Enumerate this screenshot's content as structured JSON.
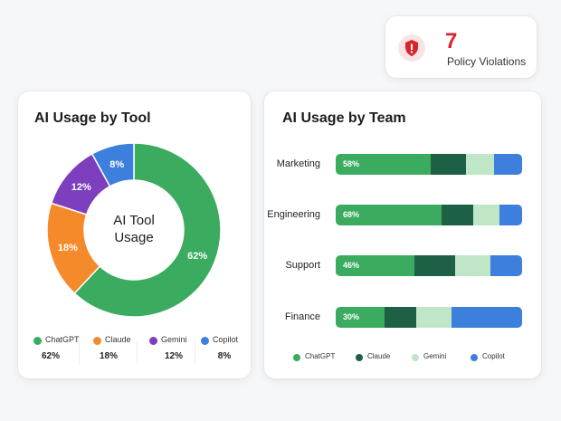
{
  "violations": {
    "count": "7",
    "label": "Policy Violations",
    "color": "#d9242b",
    "icon": "shield-alert-icon"
  },
  "tool_card": {
    "title": "AI Usage by Tool",
    "center_label": [
      "AI Tool",
      "Usage"
    ],
    "legend": [
      {
        "name": "ChatGPT",
        "value": "62%",
        "color": "#3aab5f"
      },
      {
        "name": "Claude",
        "value": "18%",
        "color": "#f48a2a"
      },
      {
        "name": "Gemini",
        "value": "12%",
        "color": "#7e3fbf"
      },
      {
        "name": "Copilot",
        "value": "8%",
        "color": "#3c7fdd"
      }
    ]
  },
  "team_card": {
    "title": "AI Usage by Team",
    "legend": [
      {
        "name": "ChatGPT",
        "color": "#3aab5f"
      },
      {
        "name": "Claude",
        "color": "#1e6045"
      },
      {
        "name": "Gemini",
        "color": "#bfe6c6"
      },
      {
        "name": "Copilot",
        "color": "#3c7fdd"
      }
    ]
  },
  "chart_data": [
    {
      "type": "pie",
      "title": "AI Usage by Tool",
      "categories": [
        "ChatGPT",
        "Claude",
        "Gemini",
        "Copilot"
      ],
      "values": [
        62,
        18,
        12,
        8
      ],
      "colors": [
        "#3aab5f",
        "#f48a2a",
        "#7e3fbf",
        "#3c7fdd"
      ],
      "data_labels": [
        "62%",
        "18%",
        "12%",
        "8%"
      ]
    },
    {
      "type": "bar",
      "orientation": "horizontal",
      "stacked": true,
      "title": "AI Usage by Team",
      "categories": [
        "Marketing",
        "Engineering",
        "Support",
        "Finance"
      ],
      "data_labels": [
        "58%",
        "68%",
        "46%",
        "30%"
      ],
      "series": [
        {
          "name": "ChatGPT",
          "color": "#3aab5f",
          "values": [
            51,
            57,
            42,
            26
          ]
        },
        {
          "name": "Claude",
          "color": "#1e6045",
          "values": [
            19,
            17,
            22,
            17
          ]
        },
        {
          "name": "Gemini",
          "color": "#bfe6c6",
          "values": [
            15,
            14,
            19,
            19
          ]
        },
        {
          "name": "Copilot",
          "color": "#3c7fdd",
          "values": [
            15,
            12,
            17,
            38
          ]
        }
      ]
    }
  ]
}
